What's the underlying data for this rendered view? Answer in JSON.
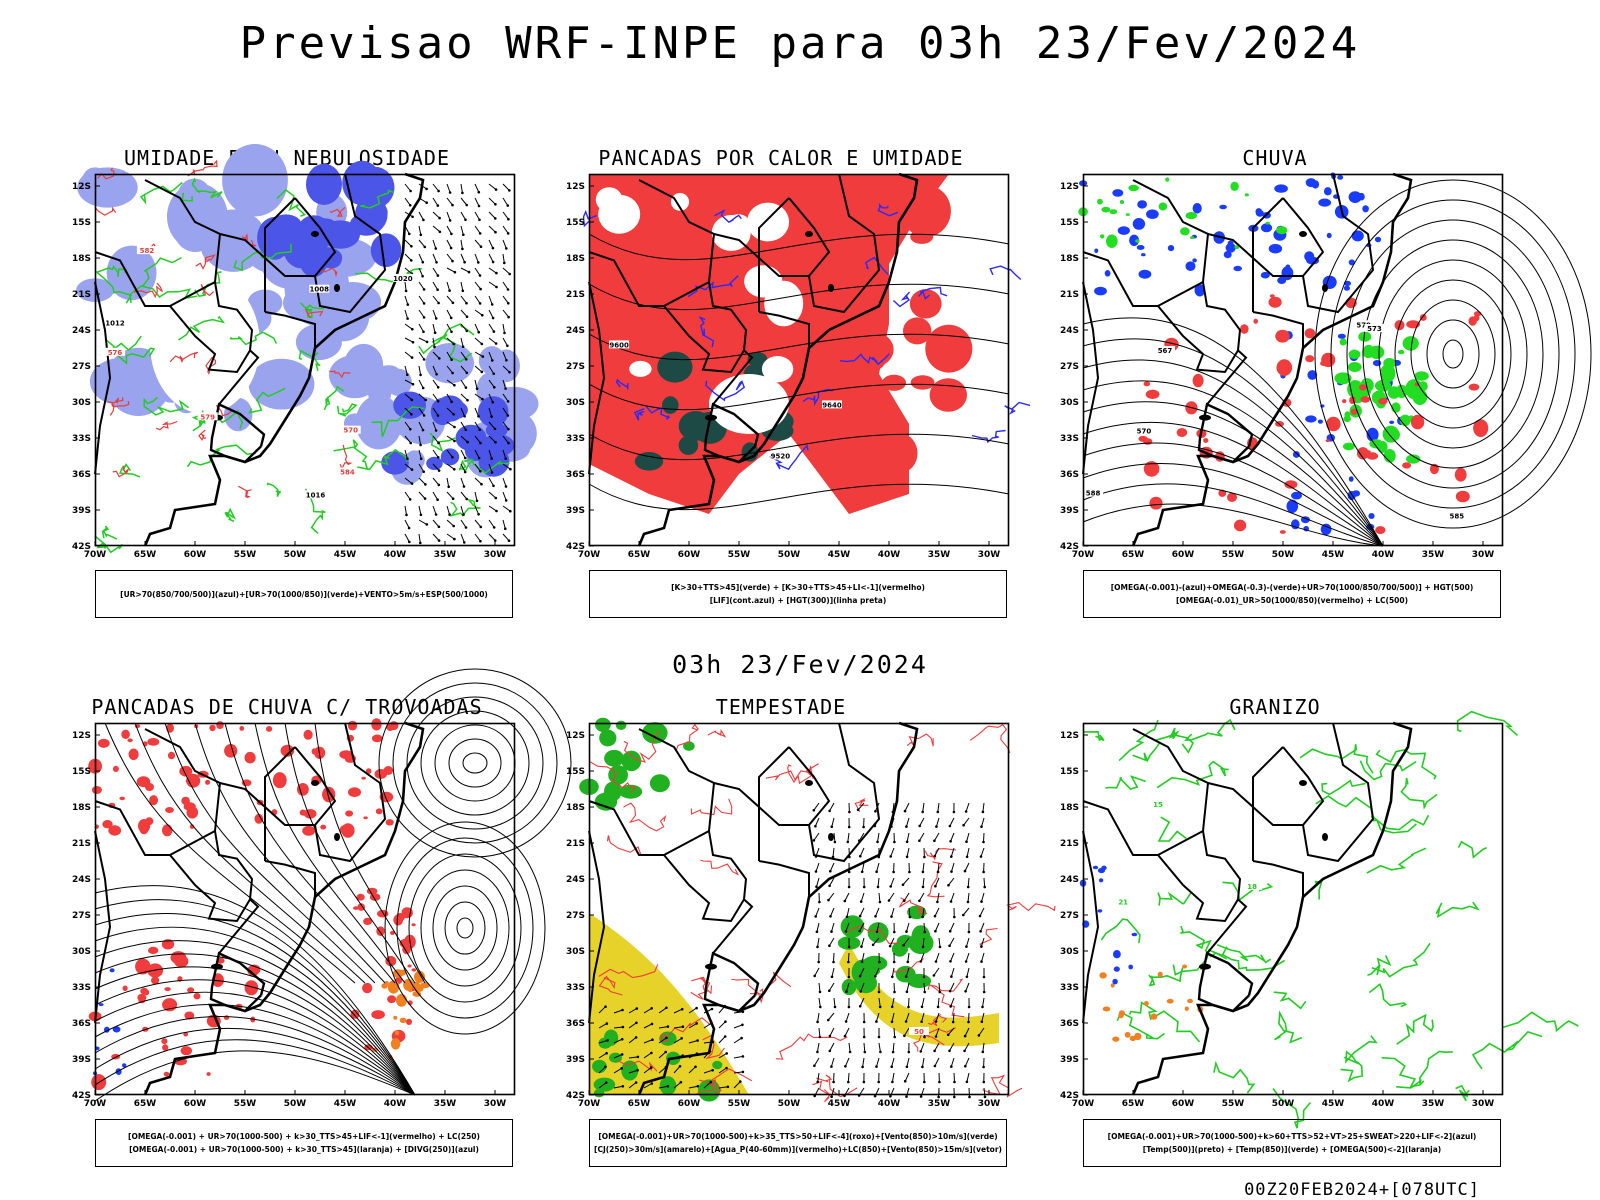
{
  "main_title": "Previsao WRF-INPE  para 03h 23/Fev/2024",
  "mid_title": "03h 23/Fev/2024",
  "footer": "00Z20FEB2024+[078UTC]",
  "lat_labels": [
    "12S",
    "15S",
    "18S",
    "21S",
    "24S",
    "27S",
    "30S",
    "33S",
    "36S",
    "39S",
    "42S"
  ],
  "lon_labels": [
    "70W",
    "65W",
    "60W",
    "55W",
    "50W",
    "45W",
    "40W",
    "35W",
    "30W"
  ],
  "panels": [
    {
      "title": "UMIDADE E/OU NEBULOSIDADE",
      "legend": [
        "[UR>70(850/700/500)](azul)+[UR>70(1000/850)](verde)+VENTO>5m/s+ESP(500/1000)"
      ],
      "contour_labels": [
        "1012",
        "1008",
        "1016",
        "1020",
        "576",
        "579",
        "582",
        "584",
        "570"
      ],
      "colors": {
        "fill": "#9aa4ee",
        "fill_dark": "#4b55e8",
        "contour_green": "#22cc22",
        "contour_red": "#e83c3c"
      }
    },
    {
      "title": "PANCADAS POR CALOR E UMIDADE",
      "legend": [
        "[K>30+TTS>45](verde) + [K>30+TTS>45+LI<-1](vermelho)",
        "[LIF](cont.azul) + [HGT(300)](linha preta)"
      ],
      "contour_labels": [
        "9600",
        "9520",
        "9640"
      ],
      "colors": {
        "fill": "#f03c3c",
        "fill_dark": "#1e4a46",
        "contour_blue": "#2a2aff"
      }
    },
    {
      "title": "CHUVA",
      "legend": [
        "[OMEGA(-0.001)-(azul)+OMEGA(-0.3)-(verde)+UR>70(1000/850/700/500)] + HGT(500)",
        "[OMEGA(-0.01)_UR>50(1000/850)(vermelho) + LC(500)"
      ],
      "contour_labels": [
        "588",
        "585",
        "579",
        "573",
        "570",
        "567"
      ],
      "colors": {
        "red": "#f03c3c",
        "blue": "#1a3cff",
        "green": "#22dd22"
      }
    },
    {
      "title": "PANCADAS DE CHUVA C/ TROVOADAS",
      "legend": [
        "[OMEGA(-0.001) + UR>70(1000-500) + k>30_TTS>45+LIF<-1](vermelho) + LC(250)",
        "[OMEGA(-0.001) + UR>70(1000-500) + k>30_TTS>45](laranja) + [DIVG(250)](azul)"
      ],
      "contour_labels": [],
      "colors": {
        "red": "#f03c3c",
        "orange": "#f08020",
        "blue": "#1a3cff"
      }
    },
    {
      "title": "TEMPESTADE",
      "legend": [
        "[OMEGA(-0.001)+UR>70(1000-500)+k>35_TTS>50+LIF<-4](roxo)+[Vento(850)>10m/s](verde)",
        "[CJ(250)>30m/s](amarelo)+[Agua_P(40-60mm)](vermelho)+LC(850)+[Vento(850)>15m/s](vetor)"
      ],
      "contour_labels": [
        "50"
      ],
      "colors": {
        "yellow": "#e6d228",
        "green": "#20b020",
        "red": "#f03c3c"
      }
    },
    {
      "title": "GRANIZO",
      "legend": [
        "[OMEGA(-0.001)+UR>70(1000-500)+k>60+TTS>52+VT>25+SWEAT>220+LIF<-2](azul)",
        "[Temp(500)](preto) + [Temp(850)](verde) + [OMEGA(500)<-2](laranja)"
      ],
      "contour_labels": [
        "21",
        "18",
        "15"
      ],
      "colors": {
        "green": "#22cc22",
        "orange": "#f08020",
        "blue": "#1a3cff"
      }
    }
  ]
}
